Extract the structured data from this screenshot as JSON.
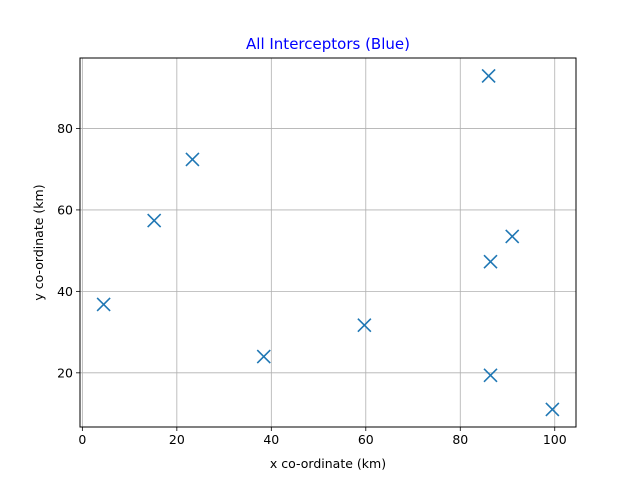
{
  "chart_data": {
    "type": "scatter",
    "title": "All Interceptors (Blue)",
    "xlabel": "x co-ordinate (km)",
    "ylabel": "y co-ordinate (km)",
    "xlim": [
      -0.5,
      104.5
    ],
    "ylim": [
      6.7,
      97.3
    ],
    "xticks": [
      0,
      20,
      40,
      60,
      80,
      100
    ],
    "yticks": [
      20,
      40,
      60,
      80
    ],
    "grid": true,
    "marker": "x",
    "colors": {
      "title": "#0000ff",
      "marker": "#1f77b4",
      "grid": "#b0b0b0"
    },
    "points": [
      {
        "x": 4.5,
        "y": 36.8
      },
      {
        "x": 15.2,
        "y": 57.4
      },
      {
        "x": 23.3,
        "y": 72.4
      },
      {
        "x": 38.4,
        "y": 24.0
      },
      {
        "x": 59.7,
        "y": 31.7
      },
      {
        "x": 86.0,
        "y": 92.9
      },
      {
        "x": 86.4,
        "y": 47.3
      },
      {
        "x": 86.4,
        "y": 19.4
      },
      {
        "x": 91.0,
        "y": 53.5
      },
      {
        "x": 99.5,
        "y": 11.0
      }
    ]
  }
}
